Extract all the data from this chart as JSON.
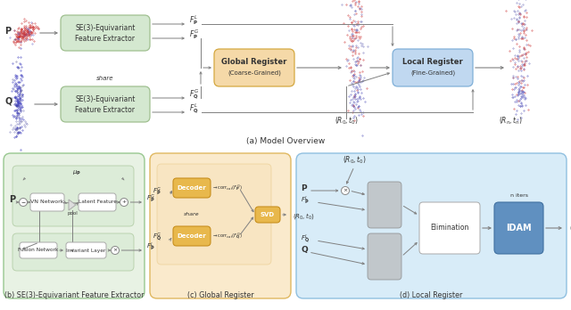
{
  "fig_width": 6.4,
  "fig_height": 3.48,
  "bg_color": "#ffffff",
  "title_a": "(a) Model Overview",
  "title_b": "(b) SE(3)-Equivariant Feature Extractor",
  "title_c": "(c) Global Register",
  "title_d": "(d) Local Register",
  "green_box_color": "#d4e8d0",
  "green_box_edge": "#a0c090",
  "orange_box_color": "#f5d9a8",
  "orange_box_edge": "#d4a840",
  "blue_box_color": "#c0d8f0",
  "blue_box_edge": "#80b0d8",
  "light_green_fill": "#e8f2e4",
  "light_green_edge": "#98c890",
  "light_orange_fill": "#faeacc",
  "light_orange_edge": "#e0b860",
  "light_blue_fill": "#d8ecf8",
  "light_blue_edge": "#90c0e0",
  "decoder_color": "#e8b84c",
  "decoder_edge": "#c89020",
  "svd_color": "#e8b84c",
  "svd_edge": "#c89020",
  "idam_color": "#6090c0",
  "idam_edge": "#4070a0",
  "gray_color": "#b8b8b8",
  "gray_edge": "#888888",
  "arrow_color": "#808080",
  "text_color": "#333333"
}
